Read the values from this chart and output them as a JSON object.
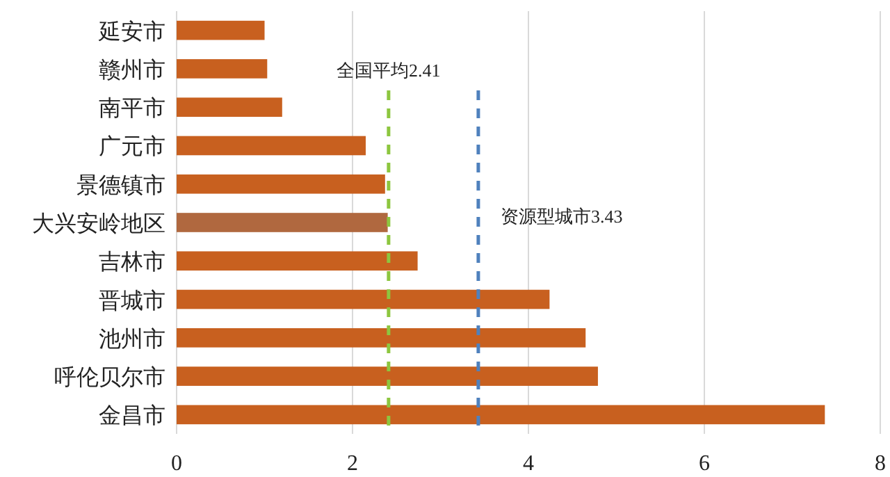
{
  "chart_data": {
    "type": "bar",
    "orientation": "horizontal",
    "categories": [
      "延安市",
      "赣州市",
      "南平市",
      "广元市",
      "景德镇市",
      "大兴安岭地区",
      "吉林市",
      "晋城市",
      "池州市",
      "呼伦贝尔市",
      "金昌市"
    ],
    "values": [
      1.0,
      1.03,
      1.2,
      2.15,
      2.37,
      2.4,
      2.74,
      4.24,
      4.65,
      4.79,
      7.37
    ],
    "colors": [
      "#c8601f",
      "#c8601f",
      "#c8601f",
      "#c8601f",
      "#c8601f",
      "#b0683f",
      "#c8601f",
      "#c8601f",
      "#c8601f",
      "#c8601f",
      "#c8601f"
    ],
    "xlim": [
      0,
      8
    ],
    "xticks": [
      0,
      2,
      4,
      6,
      8
    ],
    "grid": "x",
    "ref_lines": [
      {
        "axis": "x",
        "value": 2.41,
        "label": "全国平均2.41",
        "color": "#8dc63f",
        "line_style": "dashed"
      },
      {
        "axis": "x",
        "value": 3.43,
        "label": "资源型城市3.43",
        "color": "#4f81bd",
        "line_style": "dashed"
      }
    ]
  }
}
